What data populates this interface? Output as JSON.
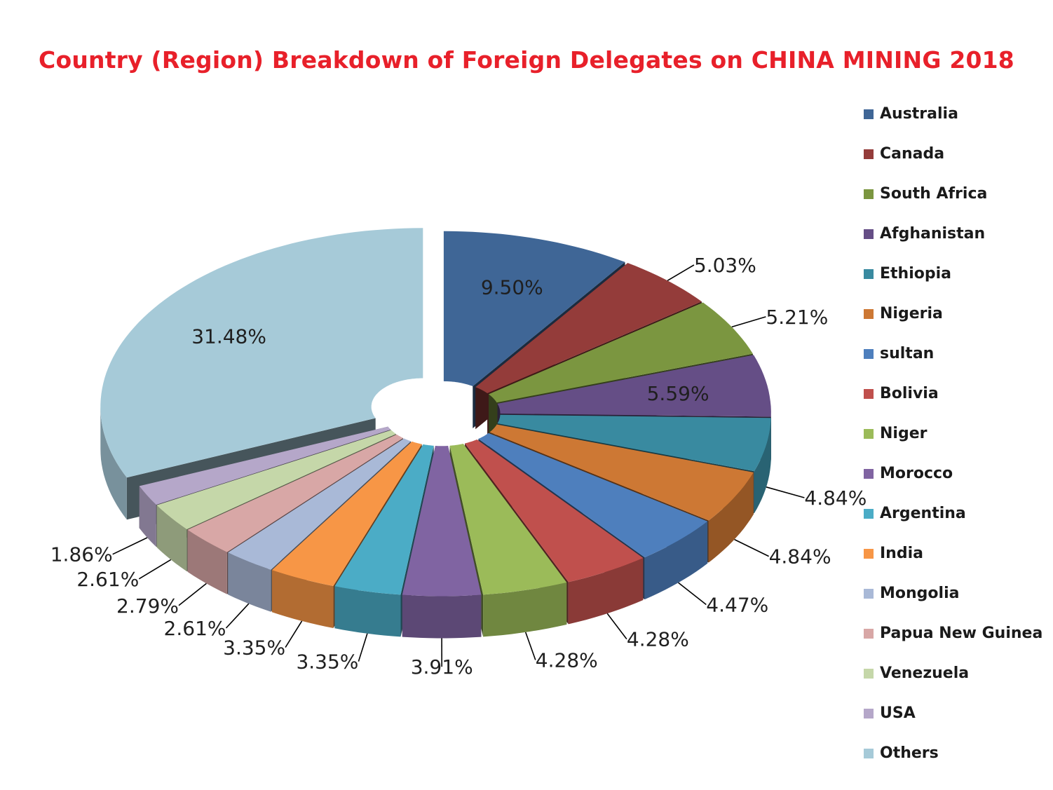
{
  "chart_data": {
    "type": "pie",
    "title": "Country (Region) Breakdown of Foreign Delegates on CHINA MINING 2018",
    "legend_position": "right",
    "three_d": true,
    "exploded": true,
    "slices": [
      {
        "label": "Australia",
        "value": 9.5,
        "display": "9.50%",
        "color": "#3f6696"
      },
      {
        "label": "Canada",
        "value": 5.03,
        "display": "5.03%",
        "color": "#943c3a"
      },
      {
        "label": "South Africa",
        "value": 5.21,
        "display": "5.21%",
        "color": "#7b9640"
      },
      {
        "label": "Afghanistan",
        "value": 5.59,
        "display": "5.59%",
        "color": "#654e86"
      },
      {
        "label": "Ethiopia",
        "value": 4.84,
        "display": "4.84%",
        "color": "#398aa0"
      },
      {
        "label": "Nigeria",
        "value": 4.84,
        "display": "4.84%",
        "color": "#cd7834"
      },
      {
        "label": "sultan",
        "value": 4.47,
        "display": "4.47%",
        "color": "#4e7fbd"
      },
      {
        "label": "Bolivia",
        "value": 4.28,
        "display": "4.28%",
        "color": "#c0504d"
      },
      {
        "label": "Niger",
        "value": 4.28,
        "display": "4.28%",
        "color": "#9bbb59"
      },
      {
        "label": "Morocco",
        "value": 3.91,
        "display": "3.91%",
        "color": "#8064a2"
      },
      {
        "label": "Argentina",
        "value": 3.35,
        "display": "3.35%",
        "color": "#4bacc6"
      },
      {
        "label": "India",
        "value": 3.35,
        "display": "3.35%",
        "color": "#f79646"
      },
      {
        "label": "Mongolia",
        "value": 2.61,
        "display": "2.61%",
        "color": "#a9b9d7"
      },
      {
        "label": "Papua New Guinea",
        "value": 2.79,
        "display": "2.79%",
        "color": "#d8a7a6"
      },
      {
        "label": "Venezuela",
        "value": 2.61,
        "display": "2.61%",
        "color": "#c5d7a9"
      },
      {
        "label": "USA",
        "value": 1.86,
        "display": "1.86%",
        "color": "#b5a7c9"
      },
      {
        "label": "Others",
        "value": 31.48,
        "display": "31.48%",
        "color": "#a6cad8"
      }
    ]
  }
}
